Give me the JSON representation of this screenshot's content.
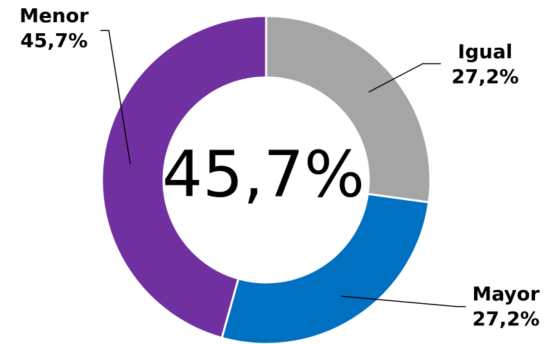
{
  "chart_data": {
    "type": "donut",
    "categories": [
      "Igual",
      "Mayor",
      "Menor"
    ],
    "values": [
      27.2,
      27.2,
      45.7
    ],
    "value_labels": [
      "27,2%",
      "27,2%",
      "45,7%"
    ],
    "colors": [
      "#a5a5a5",
      "#0070c0",
      "#7030a0"
    ],
    "center_label": "45,7%"
  }
}
